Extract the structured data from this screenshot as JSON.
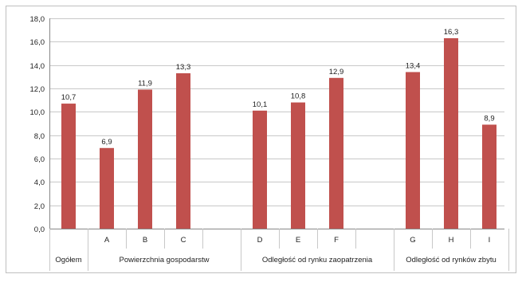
{
  "chart_data": {
    "type": "bar",
    "categories": [
      "Ogółem",
      "A",
      "B",
      "C",
      "D",
      "E",
      "F",
      "G",
      "H",
      "I"
    ],
    "values": [
      10.7,
      6.9,
      11.9,
      13.3,
      10.1,
      10.8,
      12.9,
      13.4,
      16.3,
      8.9
    ],
    "value_labels": [
      "10,7",
      "6,9",
      "11,9",
      "13,3",
      "10,1",
      "10,8",
      "12,9",
      "13,4",
      "16,3",
      "8,9"
    ],
    "groups": [
      {
        "label": "Ogółem",
        "categories": [
          "Ogółem"
        ]
      },
      {
        "label": "Powierzchnia gospodarstw",
        "categories": [
          "A",
          "B",
          "C"
        ]
      },
      {
        "label": "Odległość od rynku zaopatrzenia",
        "categories": [
          "D",
          "E",
          "F"
        ]
      },
      {
        "label": "Odległość od rynków zbytu",
        "categories": [
          "G",
          "H",
          "I"
        ]
      }
    ],
    "yticks": [
      "0,0",
      "2,0",
      "4,0",
      "6,0",
      "8,0",
      "10,0",
      "12,0",
      "14,0",
      "16,0",
      "18,0"
    ],
    "ylim": [
      0,
      18
    ],
    "grid": true,
    "legend": "none",
    "bar_color": "#c0504d",
    "grid_color": "#c8c8c8",
    "axis_color": "#888888"
  }
}
